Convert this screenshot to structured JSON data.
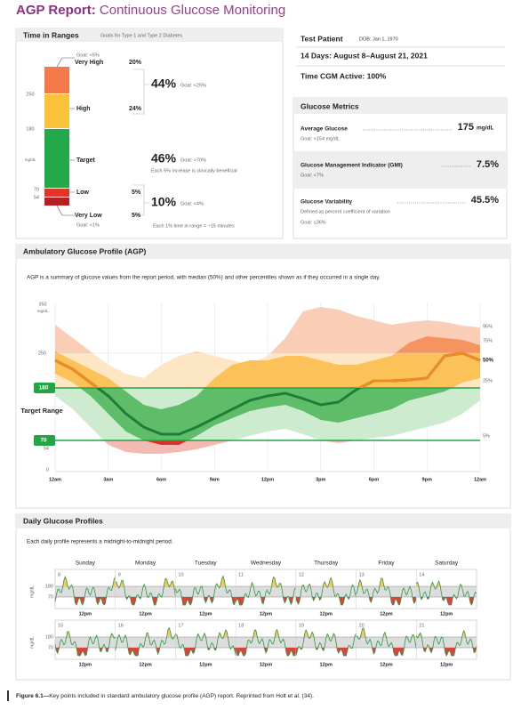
{
  "header": {
    "title_bold": "AGP Report:",
    "title_rest": "Continuous Glucose Monitoring"
  },
  "time_in_ranges": {
    "title": "Time in Ranges",
    "subtitle": "Goals for Type 1 and Type 2 Diabetes",
    "axis": {
      "v250": "250",
      "v180": "180",
      "unit": "mg/dL",
      "v70": "70",
      "v54": "54"
    },
    "very_high": {
      "goal": "Goal: <5%",
      "label": "Very High",
      "percent": "20%"
    },
    "high": {
      "label": "High",
      "percent": "24%"
    },
    "combined_high": {
      "percent": "44%",
      "goal": "Goal: <25%"
    },
    "target": {
      "label": "Target",
      "percent": "46%",
      "goal": "Goal: >70%",
      "note": "Each 5% increase is clinically beneficial"
    },
    "low": {
      "label": "Low",
      "percent": "5%"
    },
    "very_low": {
      "label": "Very Low",
      "percent": "5%",
      "goal": "Goal: <1%"
    },
    "combined_low": {
      "percent": "10%",
      "goal": "Goal: <4%",
      "note": "Each 1% time in range = ~15 minutes"
    }
  },
  "patient": {
    "name": "Test Patient",
    "dob": "DOB: Jan 1, 1970",
    "period": "14 Days: August 8–August 21, 2021",
    "cgm_active": "Time CGM Active: 100%"
  },
  "metrics": {
    "title": "Glucose Metrics",
    "average": {
      "label": "Average Glucose",
      "value": "175",
      "unit": "mg/dL",
      "goal": "Goal: <154 mg/dL"
    },
    "gmi": {
      "label": "Glucose Management Indicator (GMI)",
      "value": "7.5%",
      "goal": "Goal: <7%"
    },
    "variability": {
      "label": "Glucose Variability",
      "value": "45.5%",
      "description": "Defined as percent coefficient of variation",
      "goal": "Goal: ≤36%"
    }
  },
  "agp": {
    "title": "Ambulatory Glucose Profile (AGP)",
    "description": "AGP is a summary of glucose values from the report period, with median (50%) and other percentiles shown as if they occurred in a single day.",
    "y_labels": {
      "v350": "350",
      "unit": "mg/dL",
      "v250": "250",
      "v180": "180",
      "v70": "70",
      "v54": "54",
      "v0": "0"
    },
    "target_label": "Target Range",
    "x_labels": [
      "12am",
      "3am",
      "6am",
      "9am",
      "12pm",
      "3pm",
      "6pm",
      "9pm",
      "12am"
    ],
    "percentiles": {
      "p95": "95%",
      "p75": "75%",
      "p50": "50%",
      "p25": "25%",
      "p5": "5%"
    }
  },
  "daily": {
    "title": "Daily Glucose Profiles",
    "description": "Each daily profile represents a midnight-to-midnight period.",
    "days": [
      "Sunday",
      "Monday",
      "Tuesday",
      "Wednesday",
      "Thursday",
      "Friday",
      "Saturday"
    ],
    "week1": [
      "8",
      "9",
      "10",
      "11",
      "12",
      "13",
      "14"
    ],
    "week2": [
      "15",
      "16",
      "17",
      "18",
      "19",
      "20",
      "21"
    ],
    "noon": "12pm",
    "unit": "mg/dL",
    "y_labels": [
      "180",
      "70"
    ]
  },
  "caption": {
    "label": "Figure 6.1—",
    "text": "Key points included in standard ambulatory glucose profile (AGP) report. Reprinted from Holt et al. (34)."
  }
}
